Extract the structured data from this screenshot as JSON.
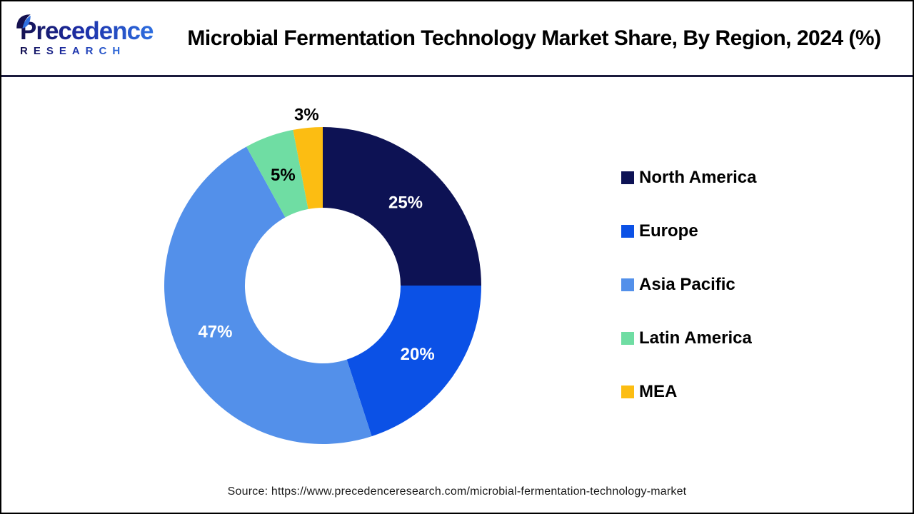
{
  "header": {
    "logo": {
      "line1": "Precedence",
      "line2": "RESEARCH"
    },
    "title": "Microbial Fermentation Technology Market Share, By Region, 2024 (%)"
  },
  "chart_data": {
    "type": "pie",
    "subtype": "donut",
    "title": "Microbial Fermentation Technology Market Share, By Region, 2024 (%)",
    "unit": "%",
    "start_angle_deg": 0,
    "direction": "clockwise",
    "inner_radius_ratio": 0.49,
    "legend_position": "right",
    "data_label_format": "{value}%",
    "series": [
      {
        "label": "North America",
        "value": 25,
        "color": "#0d1254",
        "label_color": "#ffffff",
        "label_placement": "inside"
      },
      {
        "label": "Europe",
        "value": 20,
        "color": "#0b51e6",
        "label_color": "#ffffff",
        "label_placement": "inside"
      },
      {
        "label": "Asia Pacific",
        "value": 47,
        "color": "#5390ea",
        "label_color": "#ffffff",
        "label_placement": "inside"
      },
      {
        "label": "Latin America",
        "value": 5,
        "color": "#6fdda3",
        "label_color": "#000000",
        "label_placement": "inside"
      },
      {
        "label": "MEA",
        "value": 3,
        "color": "#fcbd12",
        "label_color": "#000000",
        "label_placement": "outside"
      }
    ]
  },
  "footer": {
    "source": "Source: https://www.precedenceresearch.com/microbial-fermentation-technology-market"
  }
}
